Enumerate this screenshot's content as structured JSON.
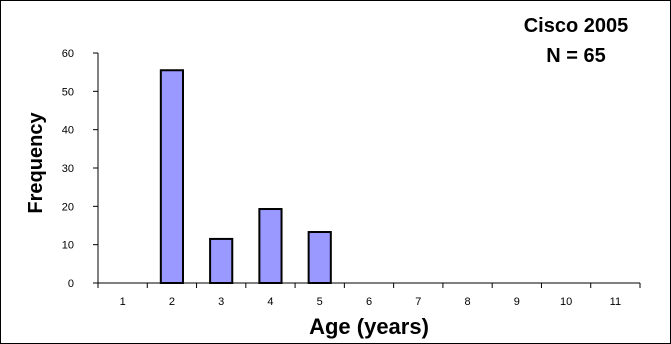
{
  "chart_data": {
    "type": "bar",
    "categories": [
      "1",
      "2",
      "3",
      "4",
      "5",
      "6",
      "7",
      "8",
      "9",
      "10",
      "11"
    ],
    "values": [
      0,
      55.5,
      11.5,
      19.3,
      13.3,
      0,
      0,
      0,
      0,
      0,
      0
    ],
    "title": "",
    "xlabel": "Age (years)",
    "ylabel": "Frequency",
    "ylim": [
      0,
      60
    ],
    "yticks": [
      "0",
      "10",
      "20",
      "30",
      "40",
      "50",
      "60"
    ],
    "annotations": [
      "Cisco 2005",
      "N = 65"
    ],
    "grid": false,
    "bar_color": "#9999ff",
    "bar_edge_color": "#000000"
  }
}
